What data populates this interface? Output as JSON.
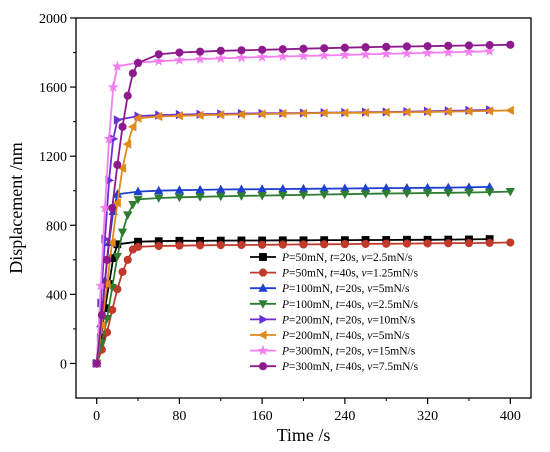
{
  "chart_data": {
    "type": "line",
    "title": "",
    "xlabel": "Time /s",
    "ylabel": "Displacement /nm",
    "xlim": [
      -20,
      420
    ],
    "ylim": [
      -200,
      2000
    ],
    "x_ticks": [
      "0",
      "80",
      "160",
      "240",
      "320",
      "400"
    ],
    "y_ticks": [
      "0",
      "400",
      "800",
      "1200",
      "1600",
      "2000"
    ],
    "grid": false,
    "legend_placement": "bottom-right",
    "series": [
      {
        "name": "P=50mN, t=20s, v=2.5mN/s",
        "legend_parts": [
          [
            "P",
            true
          ],
          [
            "=50mN, ",
            false
          ],
          [
            "t",
            true
          ],
          [
            "=20s, ",
            false
          ],
          [
            "v",
            true
          ],
          [
            "=2.5mN/s",
            false
          ]
        ],
        "color": "#000000",
        "marker": "square",
        "x": [
          0,
          4,
          8,
          12,
          16,
          20,
          40,
          60,
          80,
          100,
          120,
          140,
          160,
          180,
          200,
          220,
          240,
          260,
          280,
          300,
          320,
          340,
          360,
          380
        ],
        "y": [
          0,
          150,
          320,
          460,
          610,
          690,
          705,
          708,
          710,
          710,
          711,
          712,
          712,
          713,
          713,
          714,
          714,
          715,
          715,
          716,
          716,
          717,
          718,
          720
        ]
      },
      {
        "name": "P=50mN, t=40s, v=1.25mN/s",
        "legend_parts": [
          [
            "P",
            true
          ],
          [
            "=50mN, ",
            false
          ],
          [
            "t",
            true
          ],
          [
            "=40s, ",
            false
          ],
          [
            "v",
            true
          ],
          [
            "=1.25mN/s",
            false
          ]
        ],
        "color": "#c0392b",
        "marker": "circle",
        "x": [
          0,
          5,
          10,
          15,
          20,
          25,
          30,
          35,
          40,
          60,
          80,
          100,
          120,
          140,
          160,
          180,
          200,
          220,
          240,
          260,
          280,
          300,
          320,
          340,
          360,
          380,
          400
        ],
        "y": [
          0,
          80,
          180,
          310,
          430,
          530,
          600,
          660,
          675,
          680,
          682,
          684,
          685,
          686,
          687,
          688,
          689,
          690,
          691,
          692,
          693,
          694,
          695,
          696,
          697,
          698,
          700
        ]
      },
      {
        "name": "P=100mN, t=20s, v=5mN/s",
        "legend_parts": [
          [
            "P",
            true
          ],
          [
            "=100mN, ",
            false
          ],
          [
            "t",
            true
          ],
          [
            "=20s, ",
            false
          ],
          [
            "v",
            true
          ],
          [
            "=5mN/s",
            false
          ]
        ],
        "color": "#1f3fd1",
        "marker": "triangle-up",
        "x": [
          0,
          4,
          8,
          12,
          16,
          20,
          40,
          60,
          80,
          100,
          120,
          140,
          160,
          180,
          200,
          220,
          240,
          260,
          280,
          300,
          320,
          340,
          360,
          380
        ],
        "y": [
          0,
          230,
          480,
          700,
          880,
          980,
          995,
          1000,
          1003,
          1005,
          1007,
          1008,
          1009,
          1010,
          1011,
          1012,
          1013,
          1014,
          1015,
          1016,
          1017,
          1018,
          1020,
          1022
        ]
      },
      {
        "name": "P=100mN, t=40s, v=2.5mN/s",
        "legend_parts": [
          [
            "P",
            true
          ],
          [
            "=100mN, ",
            false
          ],
          [
            "t",
            true
          ],
          [
            "=40s, ",
            false
          ],
          [
            "v",
            true
          ],
          [
            "=2.5mN/s",
            false
          ]
        ],
        "color": "#2e7d32",
        "marker": "triangle-down",
        "x": [
          0,
          5,
          10,
          15,
          20,
          25,
          30,
          35,
          40,
          60,
          80,
          100,
          120,
          140,
          160,
          180,
          200,
          220,
          240,
          260,
          280,
          300,
          320,
          340,
          360,
          380,
          400
        ],
        "y": [
          0,
          120,
          260,
          440,
          620,
          760,
          860,
          920,
          950,
          958,
          962,
          965,
          968,
          970,
          972,
          974,
          976,
          978,
          980,
          982,
          984,
          985,
          987,
          988,
          990,
          992,
          995
        ]
      },
      {
        "name": "P=200mN, t=20s, v=10mN/s",
        "legend_parts": [
          [
            "P",
            true
          ],
          [
            "=200mN, ",
            false
          ],
          [
            "t",
            true
          ],
          [
            "=20s, ",
            false
          ],
          [
            "v",
            true
          ],
          [
            "=10mN/s",
            false
          ]
        ],
        "color": "#6b2fd6",
        "marker": "triangle-right",
        "x": [
          0,
          4,
          8,
          12,
          16,
          20,
          40,
          60,
          80,
          100,
          120,
          140,
          160,
          180,
          200,
          220,
          240,
          260,
          280,
          300,
          320,
          340,
          360,
          380
        ],
        "y": [
          0,
          350,
          720,
          1060,
          1300,
          1410,
          1432,
          1438,
          1441,
          1443,
          1445,
          1447,
          1448,
          1449,
          1450,
          1452,
          1453,
          1455,
          1456,
          1458,
          1460,
          1462,
          1465,
          1468
        ]
      },
      {
        "name": "P=200mN, t=40s, v=5mN/s",
        "legend_parts": [
          [
            "P",
            true
          ],
          [
            "=200mN, ",
            false
          ],
          [
            "t",
            true
          ],
          [
            "=40s, ",
            false
          ],
          [
            "v",
            true
          ],
          [
            "=5mN/s",
            false
          ]
        ],
        "color": "#e08a1e",
        "marker": "triangle-left",
        "x": [
          0,
          5,
          10,
          15,
          20,
          25,
          30,
          35,
          40,
          60,
          80,
          100,
          120,
          140,
          160,
          180,
          200,
          220,
          240,
          260,
          280,
          300,
          320,
          340,
          360,
          380,
          400
        ],
        "y": [
          0,
          220,
          460,
          700,
          930,
          1130,
          1270,
          1370,
          1420,
          1430,
          1434,
          1437,
          1440,
          1442,
          1444,
          1446,
          1448,
          1450,
          1451,
          1452,
          1454,
          1455,
          1456,
          1458,
          1460,
          1462,
          1465
        ]
      },
      {
        "name": "P=300mN, t=20s, v=15mN/s",
        "legend_parts": [
          [
            "P",
            true
          ],
          [
            "=300mN, ",
            false
          ],
          [
            "t",
            true
          ],
          [
            "=20s, ",
            false
          ],
          [
            "v",
            true
          ],
          [
            "=15mN/s",
            false
          ]
        ],
        "color": "#f27ef0",
        "marker": "star",
        "x": [
          0,
          4,
          8,
          12,
          16,
          20,
          40,
          60,
          80,
          100,
          120,
          140,
          160,
          180,
          200,
          220,
          240,
          260,
          280,
          300,
          320,
          340,
          360,
          380
        ],
        "y": [
          0,
          450,
          900,
          1300,
          1600,
          1720,
          1742,
          1750,
          1756,
          1762,
          1766,
          1770,
          1774,
          1777,
          1780,
          1783,
          1786,
          1789,
          1792,
          1795,
          1798,
          1801,
          1804,
          1808
        ]
      },
      {
        "name": "P=300mN, t=40s, v=7.5mN/s",
        "legend_parts": [
          [
            "P",
            true
          ],
          [
            "=300mN, ",
            false
          ],
          [
            "t",
            true
          ],
          [
            "=40s, ",
            false
          ],
          [
            "v",
            true
          ],
          [
            "=7.5mN/s",
            false
          ]
        ],
        "color": "#8e1b8e",
        "marker": "circle",
        "x": [
          0,
          5,
          10,
          15,
          20,
          25,
          30,
          35,
          40,
          60,
          80,
          100,
          120,
          140,
          160,
          180,
          200,
          220,
          240,
          260,
          280,
          300,
          320,
          340,
          360,
          380,
          400
        ],
        "y": [
          0,
          280,
          600,
          900,
          1150,
          1370,
          1550,
          1680,
          1740,
          1790,
          1800,
          1805,
          1810,
          1813,
          1816,
          1819,
          1822,
          1825,
          1828,
          1831,
          1833,
          1835,
          1837,
          1839,
          1841,
          1843,
          1845
        ]
      }
    ]
  }
}
